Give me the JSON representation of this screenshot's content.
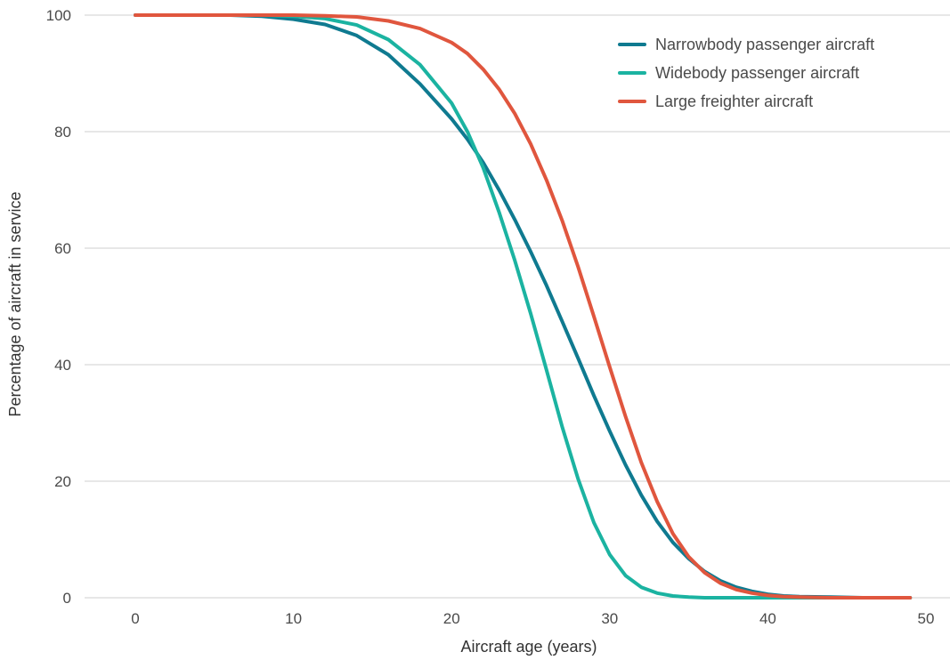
{
  "chart_data": {
    "type": "line",
    "xlabel": "Aircraft age (years)",
    "ylabel": "Percentage of aircraft in service",
    "xlim": [
      0,
      50
    ],
    "ylim": [
      0,
      100
    ],
    "x_ticks": [
      0,
      10,
      20,
      30,
      40,
      50
    ],
    "y_ticks": [
      0,
      20,
      40,
      60,
      80,
      100
    ],
    "grid": "horizontal",
    "legend_position": "top-right",
    "x": [
      0,
      2,
      4,
      6,
      8,
      10,
      12,
      14,
      16,
      18,
      20,
      21,
      22,
      23,
      24,
      25,
      26,
      27,
      28,
      29,
      30,
      31,
      32,
      33,
      34,
      35,
      36,
      37,
      38,
      39,
      40,
      41,
      42,
      44,
      46,
      49
    ],
    "series": [
      {
        "name": "Narrowbody passenger aircraft",
        "color": "#0f7a90",
        "values": [
          100,
          100,
          100,
          100,
          99.8,
          99.3,
          98.4,
          96.5,
          93.2,
          88.2,
          82.2,
          78.7,
          74.7,
          70.0,
          64.9,
          59.4,
          53.6,
          47.4,
          41.1,
          34.7,
          28.6,
          22.8,
          17.6,
          13.1,
          9.5,
          6.7,
          4.5,
          2.9,
          1.8,
          1.1,
          0.6,
          0.3,
          0.2,
          0.1,
          0.0,
          0.0
        ]
      },
      {
        "name": "Widebody passenger aircraft",
        "color": "#1bb3a1",
        "values": [
          100,
          100,
          100,
          100,
          100,
          99.8,
          99.4,
          98.3,
          95.8,
          91.5,
          84.9,
          80.0,
          73.8,
          66.2,
          57.9,
          48.8,
          39.1,
          29.3,
          20.4,
          12.9,
          7.4,
          3.8,
          1.8,
          0.8,
          0.3,
          0.1,
          0.0,
          0.0,
          0.0,
          0.0,
          0.0,
          0.0,
          0.0,
          0.0,
          0.0,
          0.0
        ]
      },
      {
        "name": "Large freighter aircraft",
        "color": "#e0563e",
        "values": [
          100,
          100,
          100,
          100,
          100,
          100,
          99.9,
          99.7,
          99.0,
          97.7,
          95.3,
          93.4,
          90.7,
          87.3,
          83.1,
          77.9,
          71.7,
          64.7,
          56.8,
          48.3,
          39.6,
          31.1,
          23.2,
          16.5,
          11.0,
          7.0,
          4.3,
          2.5,
          1.4,
          0.8,
          0.4,
          0.2,
          0.1,
          0.0,
          0.0,
          0.0
        ]
      }
    ]
  }
}
